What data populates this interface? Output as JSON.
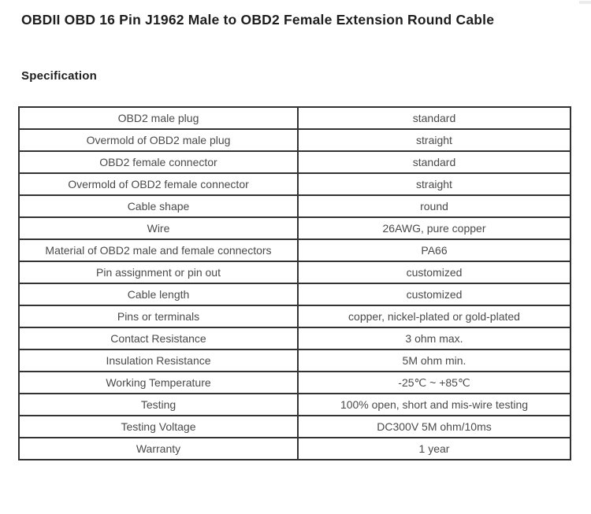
{
  "page": {
    "title": "OBDII OBD 16 Pin J1962 Male to OBD2 Female Extension Round Cable",
    "section_heading": "Specification"
  },
  "spec_table": {
    "rows": [
      {
        "label": "OBD2 male plug",
        "value": "standard"
      },
      {
        "label": "Overmold of OBD2 male plug",
        "value": "straight"
      },
      {
        "label": "OBD2 female connector",
        "value": "standard"
      },
      {
        "label": "Overmold of OBD2 female connector",
        "value": "straight"
      },
      {
        "label": "Cable shape",
        "value": "round"
      },
      {
        "label": "Wire",
        "value": "26AWG, pure copper"
      },
      {
        "label": "Material of OBD2 male and female connectors",
        "value": "PA66"
      },
      {
        "label": "Pin assignment or pin out",
        "value": "customized"
      },
      {
        "label": "Cable length",
        "value": "customized"
      },
      {
        "label": "Pins or terminals",
        "value": "copper, nickel-plated or gold-plated"
      },
      {
        "label": "Contact Resistance",
        "value": "3 ohm max."
      },
      {
        "label": "Insulation Resistance",
        "value": "5M ohm min."
      },
      {
        "label": "Working Temperature",
        "value": "-25℃ ~ +85℃"
      },
      {
        "label": "Testing",
        "value": "100% open, short and mis-wire testing"
      },
      {
        "label": "Testing Voltage",
        "value": "DC300V 5M ohm/10ms"
      },
      {
        "label": "Warranty",
        "value": "1 year"
      }
    ]
  },
  "colors": {
    "background": "#ffffff",
    "title_text": "#1e1e1e",
    "table_text": "#4a4a4a",
    "table_border": "#333333",
    "scrollbar_fragment": "#ececec"
  }
}
